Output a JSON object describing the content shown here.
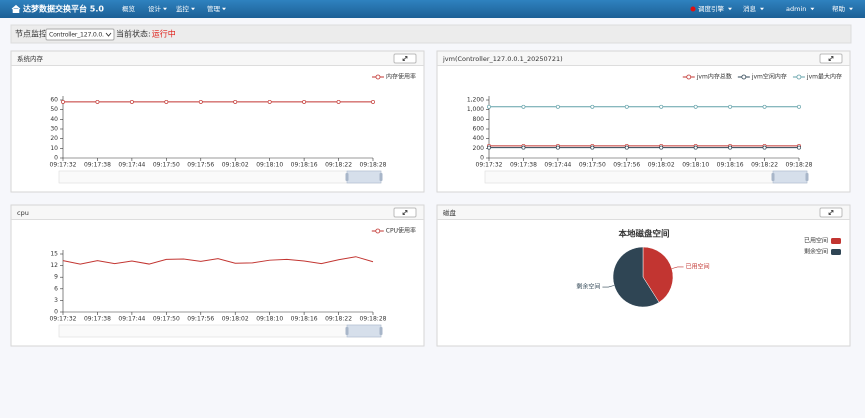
{
  "nav": {
    "brand": "达梦数据交换平台 5.0",
    "menu": [
      "概览",
      "设计",
      "监控",
      "管理"
    ],
    "right": [
      "调度引擎",
      "消息",
      "admin",
      "帮助"
    ]
  },
  "toolbar": {
    "label": "节点监控",
    "select": "Controller_127.0.0.",
    "status_label": "当前状态:",
    "status": "运行中"
  },
  "chart_data": [
    {
      "type": "line",
      "panel_title": "系统内存",
      "categories": [
        "09:17:32",
        "09:17:38",
        "09:17:44",
        "09:17:50",
        "09:17:56",
        "09:18:02",
        "09:18:10",
        "09:18:16",
        "09:18:22",
        "09:18:28"
      ],
      "series": [
        {
          "name": "内存使用率",
          "color": "#c23531",
          "values": [
            58,
            58,
            58,
            58,
            58,
            58,
            58,
            58,
            58,
            58
          ]
        }
      ],
      "ylim": [
        0,
        60
      ],
      "yticks": [
        0,
        10,
        20,
        30,
        40,
        50,
        60
      ],
      "markers": true
    },
    {
      "type": "line",
      "panel_title": "jvm(Controller_127.0.0.1_20250721)",
      "categories": [
        "09:17:32",
        "09:17:38",
        "09:17:44",
        "09:17:50",
        "09:17:56",
        "09:18:02",
        "09:18:10",
        "09:18:16",
        "09:18:22",
        "09:18:28"
      ],
      "series": [
        {
          "name": "jvm内存总数",
          "color": "#c23531",
          "values": [
            250,
            250,
            250,
            250,
            250,
            250,
            250,
            250,
            250,
            250
          ]
        },
        {
          "name": "jvm空闲内存",
          "color": "#2f4554",
          "values": [
            215,
            215,
            215,
            215,
            215,
            215,
            215,
            215,
            215,
            215
          ]
        },
        {
          "name": "jvm最大内存",
          "color": "#61a0a8",
          "values": [
            1060,
            1060,
            1060,
            1060,
            1060,
            1060,
            1060,
            1060,
            1060,
            1060
          ]
        }
      ],
      "ylim": [
        0,
        1200
      ],
      "yticks": [
        0,
        200,
        400,
        600,
        800,
        {
          "value": 1000,
          "label": "1,000"
        },
        {
          "value": 1200,
          "label": "1,200"
        }
      ],
      "markers": true
    },
    {
      "type": "line",
      "panel_title": "cpu",
      "categories": [
        "09:17:32",
        null,
        "09:17:38",
        null,
        "09:17:44",
        null,
        "09:17:50",
        null,
        "09:17:56",
        null,
        "09:18:02",
        null,
        "09:18:10",
        null,
        "09:18:16",
        null,
        "09:18:22",
        null,
        "09:18:28"
      ],
      "series": [
        {
          "name": "CPU使用率",
          "color": "#c23531",
          "values": [
            13.3,
            12.4,
            13.3,
            12.5,
            13.2,
            12.4,
            13.6,
            13.7,
            13.1,
            13.8,
            12.6,
            12.7,
            13.4,
            13.6,
            13.2,
            12.5,
            13.5,
            14.3,
            13.0
          ]
        }
      ],
      "ylim": [
        0,
        15
      ],
      "yticks": [
        0,
        3,
        6,
        9,
        12,
        15
      ],
      "markers": false
    },
    {
      "type": "pie",
      "panel_title": "磁盘",
      "title": "本地磁盘空间",
      "categories": [
        "已用空间",
        "剩余空间"
      ],
      "values": [
        41,
        59
      ],
      "colors": [
        "#c23531",
        "#2f4554"
      ]
    }
  ]
}
